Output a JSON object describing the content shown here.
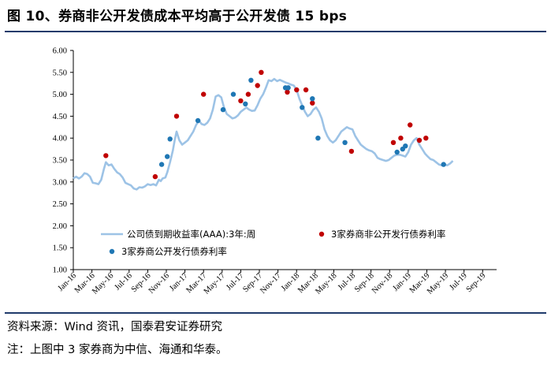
{
  "title": "图 10、券商非公开发债成本平均高于公开发债 15 bps",
  "notes": {
    "source": "资料来源：Wind 资讯，国泰君安证券研究",
    "note": "注：上图中 3 家券商为中信、海通和华泰。"
  },
  "colors": {
    "line": "#9dc3e6",
    "private_dots": "#c00000",
    "public_dots": "#1f77b4",
    "rule": "#1f3b6b",
    "axis": "#000000"
  },
  "chart_data": {
    "type": "line",
    "ylim": [
      1.0,
      6.0
    ],
    "yticks": [
      "1.00",
      "1.50",
      "2.00",
      "2.50",
      "3.00",
      "3.50",
      "4.00",
      "4.50",
      "5.00",
      "5.50",
      "6.00"
    ],
    "xlim": [
      0,
      45.5
    ],
    "xticks": [
      {
        "x": 0,
        "label": "Jan-16"
      },
      {
        "x": 2,
        "label": "Mar-16"
      },
      {
        "x": 4,
        "label": "May-16"
      },
      {
        "x": 6,
        "label": "Jul-16"
      },
      {
        "x": 8,
        "label": "Sep-16"
      },
      {
        "x": 10,
        "label": "Nov-16"
      },
      {
        "x": 12,
        "label": "Jan-17"
      },
      {
        "x": 14,
        "label": "Mar-17"
      },
      {
        "x": 16,
        "label": "May-17"
      },
      {
        "x": 18,
        "label": "Jul-17"
      },
      {
        "x": 20,
        "label": "Sep-17"
      },
      {
        "x": 22,
        "label": "Nov-17"
      },
      {
        "x": 24,
        "label": "Jan-18"
      },
      {
        "x": 26,
        "label": "Mar-18"
      },
      {
        "x": 28,
        "label": "May-18"
      },
      {
        "x": 30,
        "label": "Jul-18"
      },
      {
        "x": 32,
        "label": "Sep-18"
      },
      {
        "x": 34,
        "label": "Nov-18"
      },
      {
        "x": 36,
        "label": "Jan-19"
      },
      {
        "x": 38,
        "label": "Mar-19"
      },
      {
        "x": 40,
        "label": "May-19"
      },
      {
        "x": 42,
        "label": "Jul-19"
      },
      {
        "x": 44,
        "label": "Sep-19"
      }
    ],
    "series": [
      {
        "name": "公司债到期收益率(AAA):3年:周",
        "kind": "line",
        "points": [
          [
            0.0,
            3.08
          ],
          [
            0.3,
            3.12
          ],
          [
            0.6,
            3.08
          ],
          [
            0.9,
            3.12
          ],
          [
            1.2,
            3.2
          ],
          [
            1.5,
            3.18
          ],
          [
            1.8,
            3.12
          ],
          [
            2.1,
            2.98
          ],
          [
            2.4,
            2.97
          ],
          [
            2.7,
            2.95
          ],
          [
            3.0,
            3.05
          ],
          [
            3.3,
            3.3
          ],
          [
            3.5,
            3.45
          ],
          [
            3.8,
            3.38
          ],
          [
            4.1,
            3.4
          ],
          [
            4.4,
            3.3
          ],
          [
            4.7,
            3.22
          ],
          [
            5.0,
            3.18
          ],
          [
            5.3,
            3.1
          ],
          [
            5.6,
            2.98
          ],
          [
            5.9,
            2.95
          ],
          [
            6.2,
            2.92
          ],
          [
            6.5,
            2.85
          ],
          [
            6.8,
            2.83
          ],
          [
            7.1,
            2.88
          ],
          [
            7.4,
            2.87
          ],
          [
            7.7,
            2.9
          ],
          [
            8.0,
            2.95
          ],
          [
            8.3,
            2.93
          ],
          [
            8.6,
            2.95
          ],
          [
            8.9,
            2.92
          ],
          [
            9.2,
            3.05
          ],
          [
            9.4,
            3.02
          ],
          [
            9.6,
            3.08
          ],
          [
            9.9,
            3.1
          ],
          [
            10.1,
            3.22
          ],
          [
            10.4,
            3.45
          ],
          [
            10.7,
            3.72
          ],
          [
            10.9,
            3.95
          ],
          [
            11.1,
            4.15
          ],
          [
            11.4,
            3.95
          ],
          [
            11.7,
            3.85
          ],
          [
            12.0,
            3.9
          ],
          [
            12.3,
            3.95
          ],
          [
            12.6,
            4.05
          ],
          [
            12.9,
            4.15
          ],
          [
            13.2,
            4.3
          ],
          [
            13.5,
            4.4
          ],
          [
            13.8,
            4.32
          ],
          [
            14.1,
            4.3
          ],
          [
            14.4,
            4.35
          ],
          [
            14.7,
            4.45
          ],
          [
            15.0,
            4.65
          ],
          [
            15.3,
            4.95
          ],
          [
            15.6,
            4.98
          ],
          [
            15.9,
            4.93
          ],
          [
            16.2,
            4.7
          ],
          [
            16.5,
            4.55
          ],
          [
            16.8,
            4.5
          ],
          [
            17.1,
            4.45
          ],
          [
            17.4,
            4.47
          ],
          [
            17.7,
            4.52
          ],
          [
            18.0,
            4.6
          ],
          [
            18.3,
            4.65
          ],
          [
            18.6,
            4.7
          ],
          [
            18.9,
            4.65
          ],
          [
            19.2,
            4.62
          ],
          [
            19.5,
            4.63
          ],
          [
            19.8,
            4.75
          ],
          [
            20.1,
            4.9
          ],
          [
            20.4,
            5.0
          ],
          [
            20.7,
            5.15
          ],
          [
            21.0,
            5.32
          ],
          [
            21.3,
            5.3
          ],
          [
            21.6,
            5.35
          ],
          [
            21.9,
            5.3
          ],
          [
            22.2,
            5.33
          ],
          [
            22.5,
            5.3
          ],
          [
            22.8,
            5.27
          ],
          [
            23.1,
            5.25
          ],
          [
            23.4,
            5.22
          ],
          [
            23.7,
            5.2
          ],
          [
            24.0,
            5.1
          ],
          [
            24.3,
            4.9
          ],
          [
            24.6,
            4.75
          ],
          [
            24.9,
            4.6
          ],
          [
            25.2,
            4.5
          ],
          [
            25.5,
            4.55
          ],
          [
            25.8,
            4.65
          ],
          [
            26.1,
            4.7
          ],
          [
            26.4,
            4.6
          ],
          [
            26.7,
            4.45
          ],
          [
            27.0,
            4.2
          ],
          [
            27.3,
            4.05
          ],
          [
            27.6,
            3.95
          ],
          [
            27.9,
            3.9
          ],
          [
            28.2,
            3.95
          ],
          [
            28.5,
            4.05
          ],
          [
            28.8,
            4.15
          ],
          [
            29.1,
            4.2
          ],
          [
            29.4,
            4.25
          ],
          [
            29.7,
            4.22
          ],
          [
            30.0,
            4.2
          ],
          [
            30.3,
            4.05
          ],
          [
            30.6,
            3.95
          ],
          [
            30.9,
            3.85
          ],
          [
            31.2,
            3.8
          ],
          [
            31.5,
            3.75
          ],
          [
            31.8,
            3.72
          ],
          [
            32.1,
            3.7
          ],
          [
            32.4,
            3.65
          ],
          [
            32.7,
            3.55
          ],
          [
            33.0,
            3.52
          ],
          [
            33.3,
            3.5
          ],
          [
            33.6,
            3.48
          ],
          [
            33.9,
            3.5
          ],
          [
            34.2,
            3.55
          ],
          [
            34.5,
            3.6
          ],
          [
            34.8,
            3.62
          ],
          [
            35.1,
            3.62
          ],
          [
            35.4,
            3.6
          ],
          [
            35.7,
            3.58
          ],
          [
            36.0,
            3.68
          ],
          [
            36.3,
            3.85
          ],
          [
            36.6,
            3.95
          ],
          [
            36.9,
            4.0
          ],
          [
            37.2,
            3.85
          ],
          [
            37.5,
            3.75
          ],
          [
            37.8,
            3.65
          ],
          [
            38.1,
            3.58
          ],
          [
            38.4,
            3.52
          ],
          [
            38.7,
            3.5
          ],
          [
            39.0,
            3.45
          ],
          [
            39.3,
            3.4
          ],
          [
            39.6,
            3.38
          ],
          [
            39.9,
            3.4
          ],
          [
            40.2,
            3.38
          ],
          [
            40.5,
            3.42
          ],
          [
            40.8,
            3.48
          ]
        ]
      },
      {
        "name": "3家券商非公开发行债券利率",
        "kind": "scatter",
        "points": [
          [
            3.5,
            3.6
          ],
          [
            8.8,
            3.12
          ],
          [
            11.1,
            4.5
          ],
          [
            14.0,
            5.0
          ],
          [
            18.0,
            4.85
          ],
          [
            18.8,
            5.0
          ],
          [
            19.8,
            5.2
          ],
          [
            20.2,
            5.5
          ],
          [
            23.0,
            5.05
          ],
          [
            24.0,
            5.1
          ],
          [
            25.0,
            5.1
          ],
          [
            25.7,
            4.8
          ],
          [
            29.9,
            3.7
          ],
          [
            34.4,
            3.9
          ],
          [
            35.2,
            4.0
          ],
          [
            36.2,
            4.3
          ],
          [
            37.2,
            3.95
          ],
          [
            37.9,
            4.0
          ]
        ]
      },
      {
        "name": "3家券商公开发行债券利率",
        "kind": "scatter",
        "points": [
          [
            9.5,
            3.4
          ],
          [
            10.1,
            3.58
          ],
          [
            10.4,
            3.98
          ],
          [
            13.4,
            4.4
          ],
          [
            16.1,
            4.65
          ],
          [
            17.2,
            5.0
          ],
          [
            18.5,
            4.78
          ],
          [
            19.1,
            5.32
          ],
          [
            22.8,
            5.15
          ],
          [
            23.1,
            5.15
          ],
          [
            24.6,
            4.7
          ],
          [
            25.7,
            4.9
          ],
          [
            26.3,
            4.0
          ],
          [
            29.2,
            3.9
          ],
          [
            34.8,
            3.68
          ],
          [
            35.4,
            3.75
          ],
          [
            35.7,
            3.82
          ],
          [
            39.8,
            3.4
          ]
        ]
      }
    ]
  }
}
